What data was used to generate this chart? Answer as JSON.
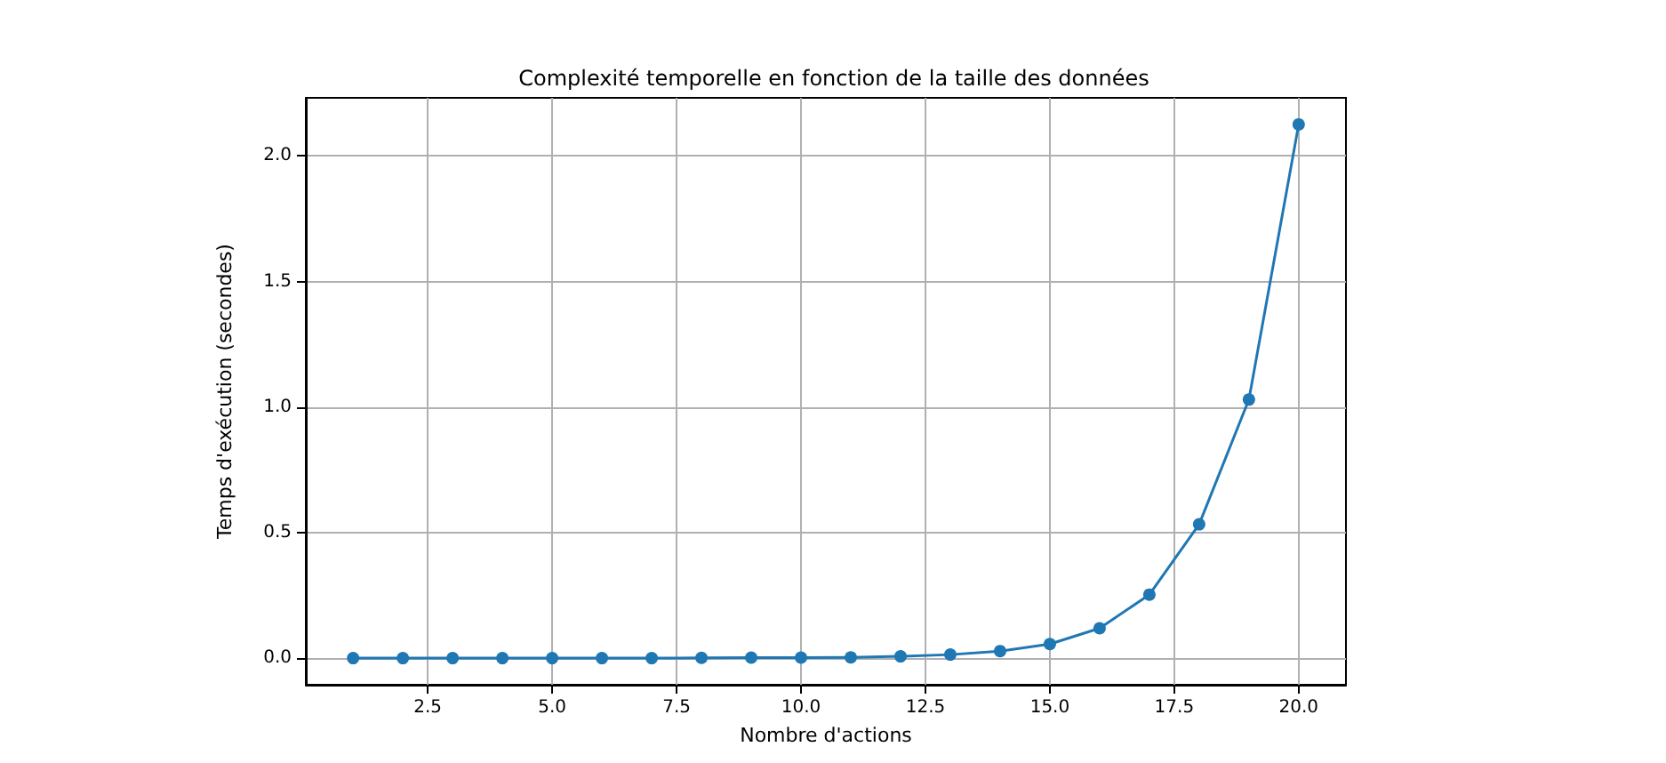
{
  "chart_data": {
    "type": "line",
    "title": "Complexité temporelle en fonction de la taille des données",
    "xlabel": "Nombre d'actions",
    "ylabel": "Temps d'exécution (secondes)",
    "x": [
      1,
      2,
      3,
      4,
      5,
      6,
      7,
      8,
      9,
      10,
      11,
      12,
      13,
      14,
      15,
      16,
      17,
      18,
      19,
      20
    ],
    "series": [
      {
        "color": "#1f77b4",
        "values": [
          0,
          0,
          0,
          0,
          0,
          0,
          0,
          0.001,
          0.002,
          0.002,
          0.003,
          0.007,
          0.014,
          0.028,
          0.056,
          0.119,
          0.253,
          0.533,
          1.03,
          2.126
        ]
      }
    ],
    "xlim": [
      0.05,
      20.95
    ],
    "ylim": [
      -0.106,
      2.232
    ],
    "xticks": [
      {
        "value": 2.5,
        "label": "2.5"
      },
      {
        "value": 5,
        "label": "5.0"
      },
      {
        "value": 7.5,
        "label": "7.5"
      },
      {
        "value": 10,
        "label": "10.0"
      },
      {
        "value": 12.5,
        "label": "12.5"
      },
      {
        "value": 15,
        "label": "15.0"
      },
      {
        "value": 17.5,
        "label": "17.5"
      },
      {
        "value": 20,
        "label": "20.0"
      }
    ],
    "yticks": [
      {
        "value": 0,
        "label": "0.0"
      },
      {
        "value": 0.5,
        "label": "0.5"
      },
      {
        "value": 1,
        "label": "1.0"
      },
      {
        "value": 1.5,
        "label": "1.5"
      },
      {
        "value": 2,
        "label": "2.0"
      }
    ],
    "grid": true,
    "marker": "circle",
    "line_style": "solid"
  }
}
